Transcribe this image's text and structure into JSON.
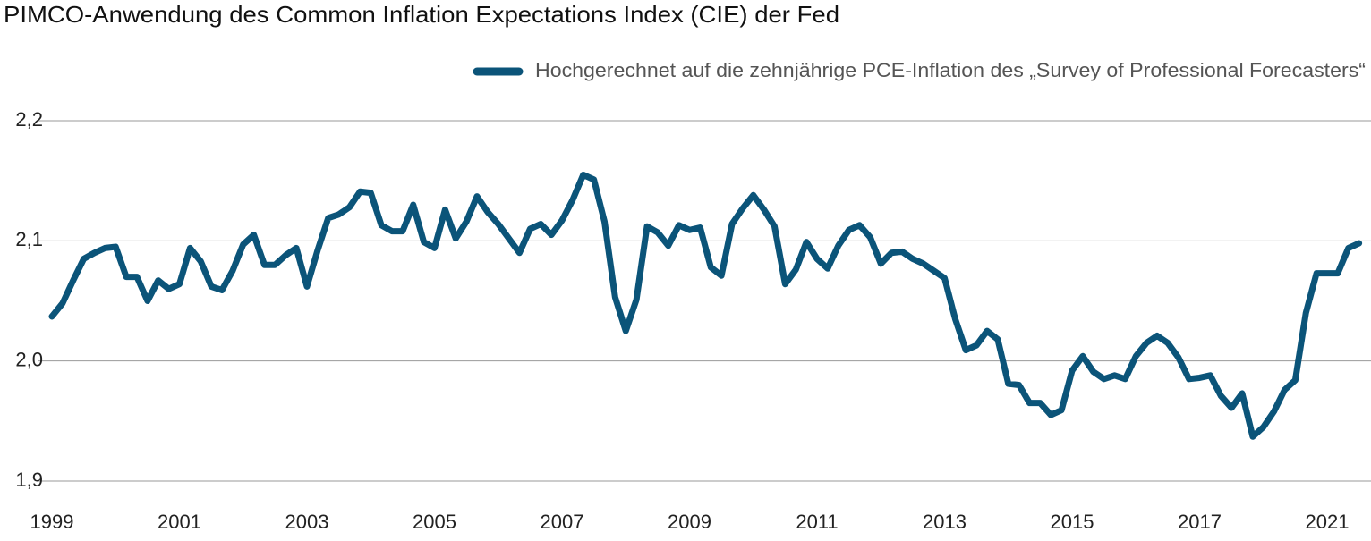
{
  "chart_data": {
    "type": "line",
    "title": "PIMCO-Anwendung des Common Inflation Expectations Index (CIE) der Fed",
    "categories": [
      "1999",
      null,
      null,
      null,
      null,
      null,
      null,
      null,
      null,
      null,
      null,
      null,
      "2001",
      null,
      null,
      null,
      null,
      null,
      null,
      null,
      null,
      null,
      null,
      null,
      "2003",
      null,
      null,
      null,
      null,
      null,
      null,
      null,
      null,
      null,
      null,
      null,
      "2005",
      null,
      null,
      null,
      null,
      null,
      null,
      null,
      null,
      null,
      null,
      null,
      "2007",
      null,
      null,
      null,
      null,
      null,
      null,
      null,
      null,
      null,
      null,
      null,
      "2009",
      null,
      null,
      null,
      null,
      null,
      null,
      null,
      null,
      null,
      null,
      null,
      "2011",
      null,
      null,
      null,
      null,
      null,
      null,
      null,
      null,
      null,
      null,
      null,
      "2013",
      null,
      null,
      null,
      null,
      null,
      null,
      null,
      null,
      null,
      null,
      null,
      "2015",
      null,
      null,
      null,
      null,
      null,
      null,
      null,
      null,
      null,
      null,
      null,
      "2017",
      null,
      null,
      null,
      null,
      null,
      null,
      null,
      null,
      null,
      null,
      null,
      "2021",
      null,
      null,
      null
    ],
    "series": [
      {
        "name": "Hochgerechnet auf die zehnjährige PCE-Inflation des „Survey of Professional Forecasters“",
        "color": "#0b5479",
        "values": [
          2.037,
          2.048,
          2.067,
          2.085,
          2.09,
          2.094,
          2.095,
          2.07,
          2.07,
          2.05,
          2.067,
          2.06,
          2.064,
          2.094,
          2.083,
          2.062,
          2.059,
          2.075,
          2.097,
          2.105,
          2.08,
          2.08,
          2.088,
          2.094,
          2.062,
          2.092,
          2.119,
          2.122,
          2.128,
          2.141,
          2.14,
          2.113,
          2.108,
          2.108,
          2.13,
          2.099,
          2.094,
          2.126,
          2.102,
          2.116,
          2.137,
          2.124,
          2.114,
          2.102,
          2.09,
          2.11,
          2.114,
          2.105,
          2.117,
          2.134,
          2.155,
          2.151,
          2.116,
          2.053,
          2.025,
          2.051,
          2.112,
          2.107,
          2.096,
          2.113,
          2.109,
          2.111,
          2.078,
          2.071,
          2.114,
          2.127,
          2.138,
          2.126,
          2.112,
          2.064,
          2.076,
          2.099,
          2.085,
          2.077,
          2.096,
          2.109,
          2.113,
          2.103,
          2.081,
          2.09,
          2.091,
          2.085,
          2.081,
          2.075,
          2.069,
          2.035,
          2.009,
          2.013,
          2.025,
          2.018,
          1.981,
          1.98,
          1.965,
          1.965,
          1.955,
          1.959,
          1.992,
          2.004,
          1.991,
          1.985,
          1.988,
          1.985,
          2.004,
          2.015,
          2.021,
          2.015,
          2.003,
          1.985,
          1.986,
          1.988,
          1.971,
          1.961,
          1.973,
          1.937,
          1.945,
          1.958,
          1.976,
          1.984,
          2.04,
          2.073,
          2.073,
          2.073,
          2.094,
          2.098
        ]
      }
    ],
    "ylim": [
      1.9,
      2.2
    ],
    "yticks": [
      {
        "value": 1.9,
        "label": "1,9"
      },
      {
        "value": 2.0,
        "label": "2,0"
      },
      {
        "value": 2.1,
        "label": "2,1"
      },
      {
        "value": 2.2,
        "label": "2,2"
      }
    ],
    "grid": true,
    "legend": "top-right"
  }
}
